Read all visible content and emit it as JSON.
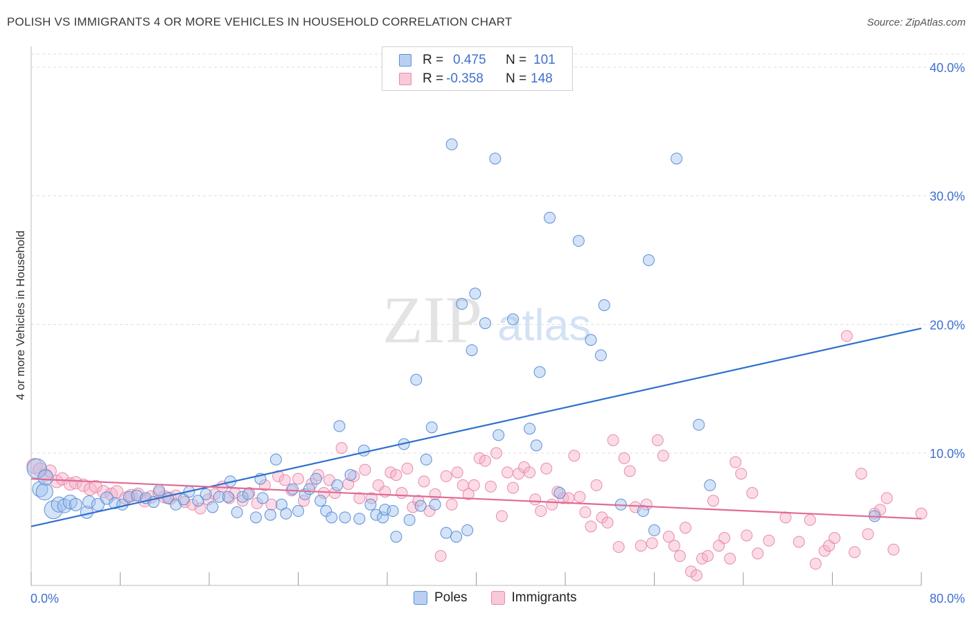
{
  "title": "POLISH VS IMMIGRANTS 4 OR MORE VEHICLES IN HOUSEHOLD CORRELATION CHART",
  "source": "Source: ZipAtlas.com",
  "watermark": {
    "zip": "ZIP",
    "atlas": "atlas"
  },
  "legend": {
    "rows": [
      {
        "r_label": "R =",
        "r_value": "0.475",
        "n_label": "N =",
        "n_value": "101"
      },
      {
        "r_label": "R =",
        "r_value": "-0.358",
        "n_label": "N =",
        "n_value": "148"
      }
    ]
  },
  "colors": {
    "blue_fill": "rgba(160,194,238,0.45)",
    "blue_stroke": "#5b8fd6",
    "blue_line": "#2f6fce",
    "pink_fill": "rgba(246,176,200,0.45)",
    "pink_stroke": "#e98aa9",
    "pink_line": "#e06a93",
    "grid": "#dcdcdc",
    "tick_label": "#3f6fcf"
  },
  "chart_data": {
    "type": "scatter",
    "title": "POLISH VS IMMIGRANTS 4 OR MORE VEHICLES IN HOUSEHOLD CORRELATION CHART",
    "xlabel": "",
    "ylabel": "4 or more Vehicles in Household",
    "xlim": [
      0,
      80
    ],
    "ylim": [
      0,
      42
    ],
    "x_tick_labels": [
      "0.0%",
      "80.0%"
    ],
    "y_ticks": [
      10,
      20,
      30,
      40
    ],
    "y_tick_labels": [
      "10.0%",
      "20.0%",
      "30.0%",
      "40.0%"
    ],
    "grid": true,
    "legend_position": "top-center",
    "series": [
      {
        "name": "Poles",
        "trend": {
          "x": [
            0,
            80
          ],
          "y": [
            4.3,
            19.7
          ]
        },
        "points": [
          [
            0.5,
            8.8,
            12
          ],
          [
            0.8,
            7.2,
            9
          ],
          [
            1.2,
            7.0,
            10
          ],
          [
            1.3,
            8.1,
            9
          ],
          [
            2.0,
            5.6,
            11
          ],
          [
            2.5,
            6.0,
            9
          ],
          [
            3.0,
            5.9,
            8
          ],
          [
            3.5,
            6.2,
            8
          ],
          [
            4.0,
            6.0,
            7
          ],
          [
            5.0,
            5.4,
            7
          ],
          [
            5.2,
            6.2,
            7
          ],
          [
            6.0,
            6.0,
            7
          ],
          [
            6.8,
            6.5,
            7
          ],
          [
            7.5,
            6.1,
            6
          ],
          [
            8.2,
            6.0,
            6
          ],
          [
            8.8,
            6.6,
            6
          ],
          [
            9.5,
            6.7,
            6
          ],
          [
            10.3,
            6.5,
            6
          ],
          [
            11.0,
            6.2,
            6
          ],
          [
            11.5,
            7.1,
            6
          ],
          [
            12.3,
            6.5,
            6
          ],
          [
            13.0,
            6.0,
            6
          ],
          [
            13.7,
            6.4,
            6
          ],
          [
            14.2,
            7.0,
            6
          ],
          [
            15.0,
            6.3,
            6
          ],
          [
            15.7,
            6.8,
            6
          ],
          [
            16.3,
            5.8,
            6
          ],
          [
            16.9,
            6.6,
            6
          ],
          [
            17.7,
            6.6,
            6
          ],
          [
            17.9,
            7.8,
            6
          ],
          [
            18.5,
            5.4,
            6
          ],
          [
            19.0,
            6.6,
            6
          ],
          [
            19.5,
            6.8,
            6
          ],
          [
            20.2,
            5.0,
            6
          ],
          [
            20.6,
            8.0,
            6
          ],
          [
            20.8,
            6.5,
            6
          ],
          [
            21.5,
            5.2,
            6
          ],
          [
            22.0,
            9.5,
            6
          ],
          [
            22.5,
            6.0,
            6
          ],
          [
            22.9,
            5.3,
            6
          ],
          [
            23.5,
            7.2,
            6
          ],
          [
            24.0,
            5.5,
            6
          ],
          [
            24.6,
            6.8,
            6
          ],
          [
            25.0,
            7.2,
            6
          ],
          [
            25.6,
            8.0,
            6
          ],
          [
            26.0,
            6.3,
            6
          ],
          [
            26.5,
            5.5,
            6
          ],
          [
            27.0,
            5.0,
            6
          ],
          [
            27.5,
            7.5,
            6
          ],
          [
            27.7,
            12.1,
            6
          ],
          [
            28.2,
            5.0,
            6
          ],
          [
            28.7,
            8.3,
            6
          ],
          [
            29.5,
            4.9,
            6
          ],
          [
            29.9,
            10.2,
            6
          ],
          [
            30.5,
            6.0,
            6
          ],
          [
            31.0,
            5.2,
            6
          ],
          [
            31.6,
            5.0,
            6
          ],
          [
            31.8,
            5.6,
            6
          ],
          [
            32.5,
            5.5,
            6
          ],
          [
            32.8,
            3.5,
            6
          ],
          [
            33.5,
            10.7,
            6
          ],
          [
            34.0,
            4.8,
            6
          ],
          [
            34.6,
            15.7,
            6
          ],
          [
            35.0,
            5.9,
            6
          ],
          [
            35.5,
            9.5,
            6
          ],
          [
            36.0,
            12.0,
            6
          ],
          [
            36.3,
            6.0,
            6
          ],
          [
            37.3,
            3.8,
            6
          ],
          [
            37.8,
            34.0,
            6
          ],
          [
            38.2,
            3.5,
            6
          ],
          [
            38.7,
            21.6,
            6
          ],
          [
            39.2,
            4.0,
            6
          ],
          [
            39.6,
            18.0,
            6
          ],
          [
            39.9,
            22.4,
            6
          ],
          [
            40.8,
            20.1,
            6
          ],
          [
            41.7,
            32.9,
            6
          ],
          [
            42.0,
            11.4,
            6
          ],
          [
            43.3,
            20.4,
            6
          ],
          [
            44.8,
            11.9,
            6
          ],
          [
            45.4,
            10.6,
            6
          ],
          [
            45.7,
            16.3,
            6
          ],
          [
            46.6,
            28.3,
            6
          ],
          [
            47.5,
            6.9,
            6
          ],
          [
            49.2,
            26.5,
            6
          ],
          [
            50.3,
            18.8,
            6
          ],
          [
            51.2,
            17.6,
            6
          ],
          [
            51.5,
            21.5,
            6
          ],
          [
            53.0,
            6.0,
            6
          ],
          [
            55.0,
            5.5,
            6
          ],
          [
            55.5,
            25.0,
            6
          ],
          [
            56.0,
            4.0,
            6
          ],
          [
            58.0,
            32.9,
            6
          ],
          [
            60.0,
            12.2,
            6
          ],
          [
            61.0,
            7.5,
            6
          ],
          [
            75.8,
            5.1,
            6
          ]
        ]
      },
      {
        "name": "Immigrants",
        "trend": {
          "x": [
            0,
            80
          ],
          "y": [
            8.0,
            4.9
          ]
        },
        "points": [
          [
            0.3,
            9.0,
            9
          ],
          [
            0.8,
            8.7,
            8
          ],
          [
            1.3,
            8.3,
            7
          ],
          [
            1.7,
            8.6,
            7
          ],
          [
            2.3,
            7.8,
            7
          ],
          [
            2.8,
            8.0,
            7
          ],
          [
            3.5,
            7.6,
            7
          ],
          [
            4.0,
            7.7,
            7
          ],
          [
            4.7,
            7.5,
            7
          ],
          [
            5.3,
            7.2,
            7
          ],
          [
            5.8,
            7.4,
            7
          ],
          [
            6.5,
            7.0,
            7
          ],
          [
            7.2,
            6.8,
            7
          ],
          [
            7.7,
            7.0,
            7
          ],
          [
            8.5,
            6.5,
            7
          ],
          [
            9.0,
            6.7,
            7
          ],
          [
            9.6,
            6.8,
            7
          ],
          [
            10.2,
            6.3,
            7
          ],
          [
            10.8,
            6.6,
            7
          ],
          [
            11.5,
            6.9,
            7
          ],
          [
            12.0,
            6.6,
            7
          ],
          [
            12.5,
            6.5,
            7
          ],
          [
            13.0,
            6.7,
            6
          ],
          [
            13.8,
            6.2,
            6
          ],
          [
            14.5,
            6.0,
            6
          ],
          [
            15.2,
            5.7,
            6
          ],
          [
            15.9,
            6.4,
            6
          ],
          [
            16.5,
            6.8,
            6
          ],
          [
            17.2,
            7.4,
            6
          ],
          [
            17.8,
            6.5,
            6
          ],
          [
            18.3,
            6.9,
            6
          ],
          [
            19.0,
            6.3,
            6
          ],
          [
            19.6,
            6.9,
            6
          ],
          [
            20.3,
            6.1,
            6
          ],
          [
            21.0,
            7.5,
            6
          ],
          [
            21.6,
            6.0,
            6
          ],
          [
            22.2,
            8.2,
            6
          ],
          [
            22.8,
            7.9,
            6
          ],
          [
            23.4,
            7.1,
            6
          ],
          [
            24.0,
            8.0,
            6
          ],
          [
            24.5,
            6.3,
            6
          ],
          [
            25.2,
            7.6,
            6
          ],
          [
            25.8,
            8.3,
            6
          ],
          [
            26.3,
            6.9,
            6
          ],
          [
            26.8,
            7.9,
            6
          ],
          [
            27.3,
            6.9,
            6
          ],
          [
            27.9,
            10.4,
            6
          ],
          [
            28.5,
            7.6,
            6
          ],
          [
            29.0,
            8.2,
            6
          ],
          [
            29.5,
            6.5,
            6
          ],
          [
            30.0,
            8.7,
            6
          ],
          [
            30.6,
            6.5,
            6
          ],
          [
            31.2,
            7.5,
            6
          ],
          [
            31.8,
            7.0,
            6
          ],
          [
            32.3,
            8.5,
            6
          ],
          [
            32.8,
            8.3,
            6
          ],
          [
            33.3,
            6.9,
            6
          ],
          [
            33.8,
            8.8,
            6
          ],
          [
            34.3,
            5.8,
            6
          ],
          [
            34.8,
            6.3,
            6
          ],
          [
            35.3,
            7.8,
            6
          ],
          [
            35.8,
            5.5,
            6
          ],
          [
            36.3,
            6.8,
            6
          ],
          [
            36.8,
            2.0,
            6
          ],
          [
            37.3,
            8.2,
            6
          ],
          [
            37.8,
            6.0,
            6
          ],
          [
            38.3,
            8.5,
            6
          ],
          [
            38.8,
            7.5,
            6
          ],
          [
            39.3,
            6.8,
            6
          ],
          [
            39.8,
            7.5,
            6
          ],
          [
            40.3,
            9.6,
            6
          ],
          [
            40.8,
            9.4,
            6
          ],
          [
            41.3,
            7.4,
            6
          ],
          [
            41.8,
            10.0,
            6
          ],
          [
            42.3,
            5.1,
            6
          ],
          [
            42.8,
            8.5,
            6
          ],
          [
            43.3,
            7.3,
            6
          ],
          [
            43.8,
            8.4,
            6
          ],
          [
            44.3,
            8.9,
            6
          ],
          [
            44.8,
            8.5,
            6
          ],
          [
            45.3,
            6.4,
            6
          ],
          [
            45.8,
            5.5,
            6
          ],
          [
            46.3,
            8.8,
            6
          ],
          [
            46.8,
            6.0,
            6
          ],
          [
            47.3,
            7.0,
            6
          ],
          [
            47.8,
            6.5,
            6
          ],
          [
            48.3,
            6.5,
            6
          ],
          [
            48.8,
            9.8,
            6
          ],
          [
            49.3,
            6.6,
            6
          ],
          [
            49.8,
            5.4,
            6
          ],
          [
            50.3,
            4.3,
            6
          ],
          [
            50.8,
            7.5,
            6
          ],
          [
            51.3,
            5.0,
            6
          ],
          [
            51.8,
            4.6,
            6
          ],
          [
            52.3,
            11.0,
            6
          ],
          [
            52.8,
            2.7,
            6
          ],
          [
            53.3,
            9.6,
            6
          ],
          [
            53.8,
            8.6,
            6
          ],
          [
            54.3,
            5.8,
            6
          ],
          [
            54.8,
            2.8,
            6
          ],
          [
            55.3,
            6.0,
            6
          ],
          [
            55.8,
            3.0,
            6
          ],
          [
            56.3,
            11.0,
            6
          ],
          [
            56.8,
            9.8,
            6
          ],
          [
            57.3,
            3.5,
            6
          ],
          [
            57.8,
            2.8,
            6
          ],
          [
            58.3,
            2.0,
            6
          ],
          [
            58.8,
            4.2,
            6
          ],
          [
            59.3,
            0.8,
            6
          ],
          [
            59.8,
            0.5,
            6
          ],
          [
            60.3,
            1.8,
            6
          ],
          [
            60.8,
            2.0,
            6
          ],
          [
            61.3,
            6.3,
            6
          ],
          [
            61.8,
            2.8,
            6
          ],
          [
            62.3,
            3.4,
            6
          ],
          [
            62.8,
            1.8,
            6
          ],
          [
            63.3,
            9.3,
            6
          ],
          [
            63.8,
            8.4,
            6
          ],
          [
            64.3,
            3.6,
            6
          ],
          [
            64.8,
            6.9,
            6
          ],
          [
            65.3,
            2.2,
            6
          ],
          [
            66.3,
            3.2,
            6
          ],
          [
            67.8,
            5.0,
            6
          ],
          [
            69.0,
            3.1,
            6
          ],
          [
            70.0,
            4.8,
            6
          ],
          [
            70.5,
            1.4,
            6
          ],
          [
            71.3,
            2.4,
            6
          ],
          [
            71.7,
            2.8,
            6
          ],
          [
            72.2,
            3.4,
            6
          ],
          [
            73.3,
            19.1,
            6
          ],
          [
            74.0,
            2.3,
            6
          ],
          [
            74.6,
            8.4,
            6
          ],
          [
            75.2,
            3.7,
            6
          ],
          [
            75.8,
            5.3,
            6
          ],
          [
            76.3,
            5.6,
            6
          ],
          [
            76.9,
            6.5,
            6
          ],
          [
            77.5,
            2.5,
            6
          ],
          [
            80.0,
            5.3,
            6
          ]
        ]
      }
    ]
  }
}
